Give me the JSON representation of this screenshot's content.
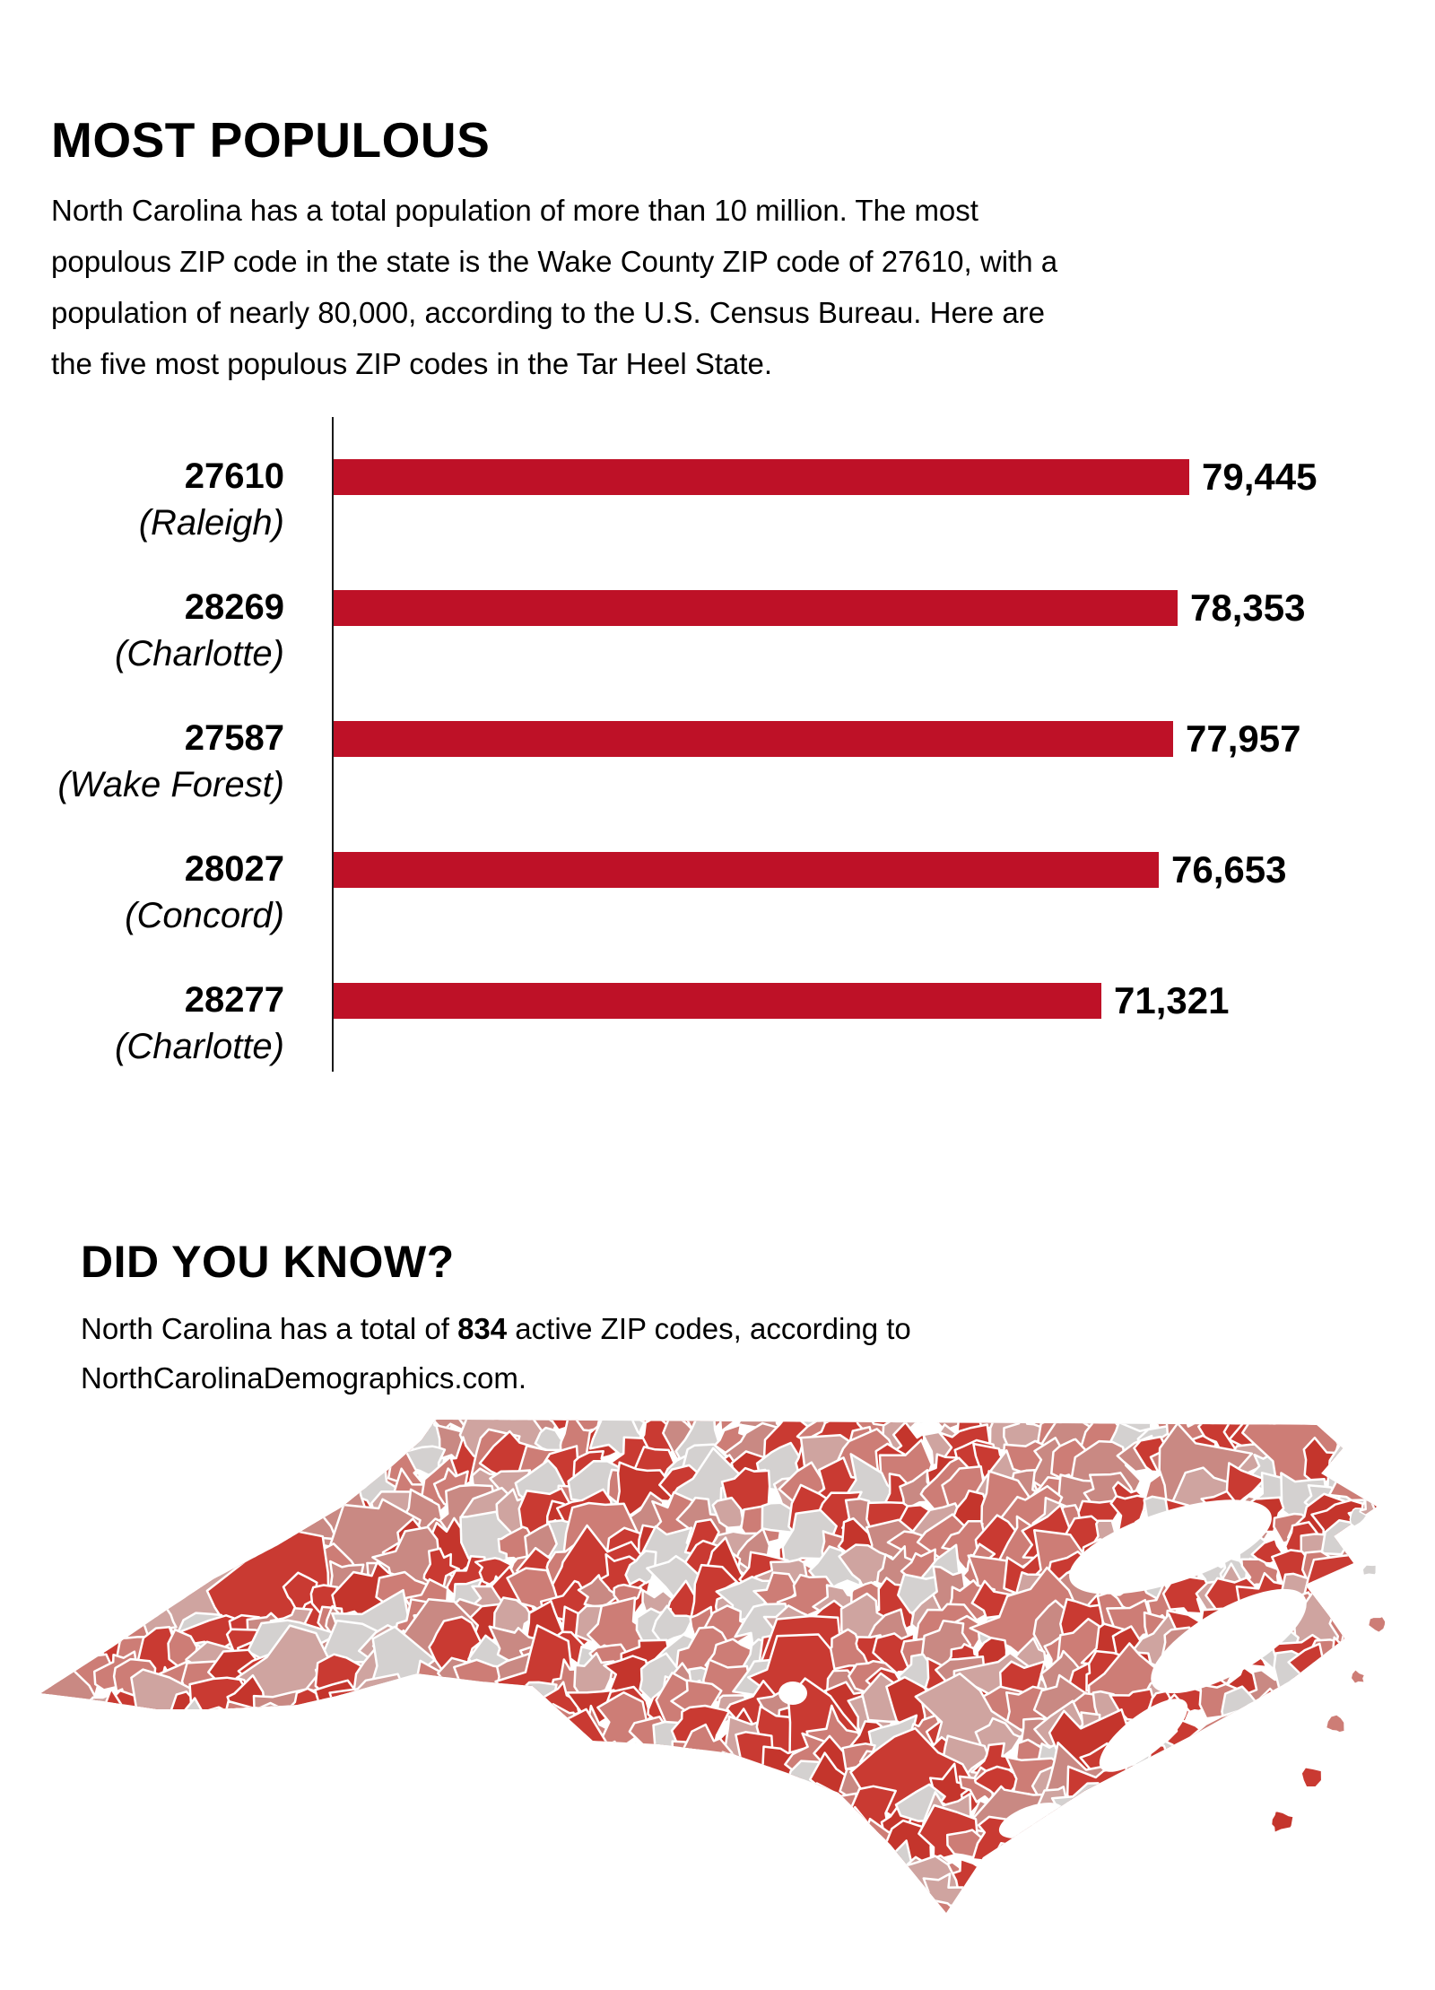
{
  "page": {
    "background": "#ffffff"
  },
  "most_populous": {
    "title": "MOST POPULOUS",
    "intro": "North Carolina has a total population of more than 10 million. The most\npopulous ZIP code in the state is the Wake County ZIP code of 27610, with a\npopulation of nearly 80,000, according to the U.S. Census Bureau. Here are\nthe five most populous ZIP codes in the Tar Heel State."
  },
  "chart_data": {
    "type": "bar",
    "orientation": "horizontal",
    "title": "",
    "categories": [
      "27610 (Raleigh)",
      "28269 (Charlotte)",
      "27587 (Wake Forest)",
      "28027 (Concord)",
      "28277 (Charlotte)"
    ],
    "zip_codes": [
      "27610",
      "28269",
      "27587",
      "28027",
      "28277"
    ],
    "cities": [
      "(Raleigh)",
      "(Charlotte)",
      "(Wake Forest)",
      "(Concord)",
      "(Charlotte)"
    ],
    "values": [
      79445,
      78353,
      77957,
      76653,
      71321
    ],
    "value_labels": [
      "79,445",
      "78,353",
      "77,957",
      "76,653",
      "71,321"
    ],
    "xlim": [
      0,
      80000
    ],
    "grid": false,
    "legend": false,
    "bar_color": "#be1127",
    "axis_color": "#1a1a1a"
  },
  "did_you_know": {
    "title": "DID YOU KNOW?",
    "text_before": "North Carolina has a total of ",
    "bold_value": "834",
    "text_after": " active ZIP codes, according to",
    "text_line2": "NorthCarolinaDemographics.com."
  },
  "map": {
    "description": "north-carolina-zip-codes-choropleth",
    "palette": [
      "#c93a32",
      "#c4352c",
      "#cd7d76",
      "#c98983",
      "#cfa4a0",
      "#d4d1d0"
    ],
    "border_color": "#ffffff",
    "water_color": "#ffffff"
  }
}
